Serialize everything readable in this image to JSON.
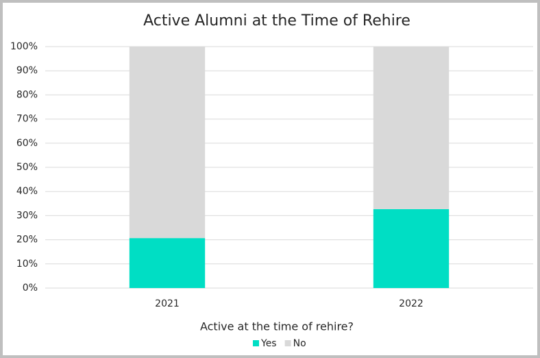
{
  "chart_data": {
    "type": "stacked_bar",
    "title": "Active Alumni at the Time of Rehire",
    "categories": [
      "2021",
      "2022"
    ],
    "series": [
      {
        "name": "Yes",
        "color": "#00dec4",
        "values": [
          20.7,
          32.7
        ]
      },
      {
        "name": "No",
        "color": "#d9d9d9",
        "values": [
          79.3,
          67.3
        ]
      }
    ],
    "legend_title": "Active at the time of rehire?",
    "ylim": [
      0,
      100
    ],
    "yticks": [
      {
        "value": 0,
        "label": "0%"
      },
      {
        "value": 10,
        "label": "10%"
      },
      {
        "value": 20,
        "label": "20%"
      },
      {
        "value": 30,
        "label": "30%"
      },
      {
        "value": 40,
        "label": "40%"
      },
      {
        "value": 50,
        "label": "50%"
      },
      {
        "value": 60,
        "label": "60%"
      },
      {
        "value": 70,
        "label": "70%"
      },
      {
        "value": 80,
        "label": "80%"
      },
      {
        "value": 90,
        "label": "90%"
      },
      {
        "value": 100,
        "label": "100%"
      }
    ],
    "grid": true,
    "legend": "bottom"
  }
}
